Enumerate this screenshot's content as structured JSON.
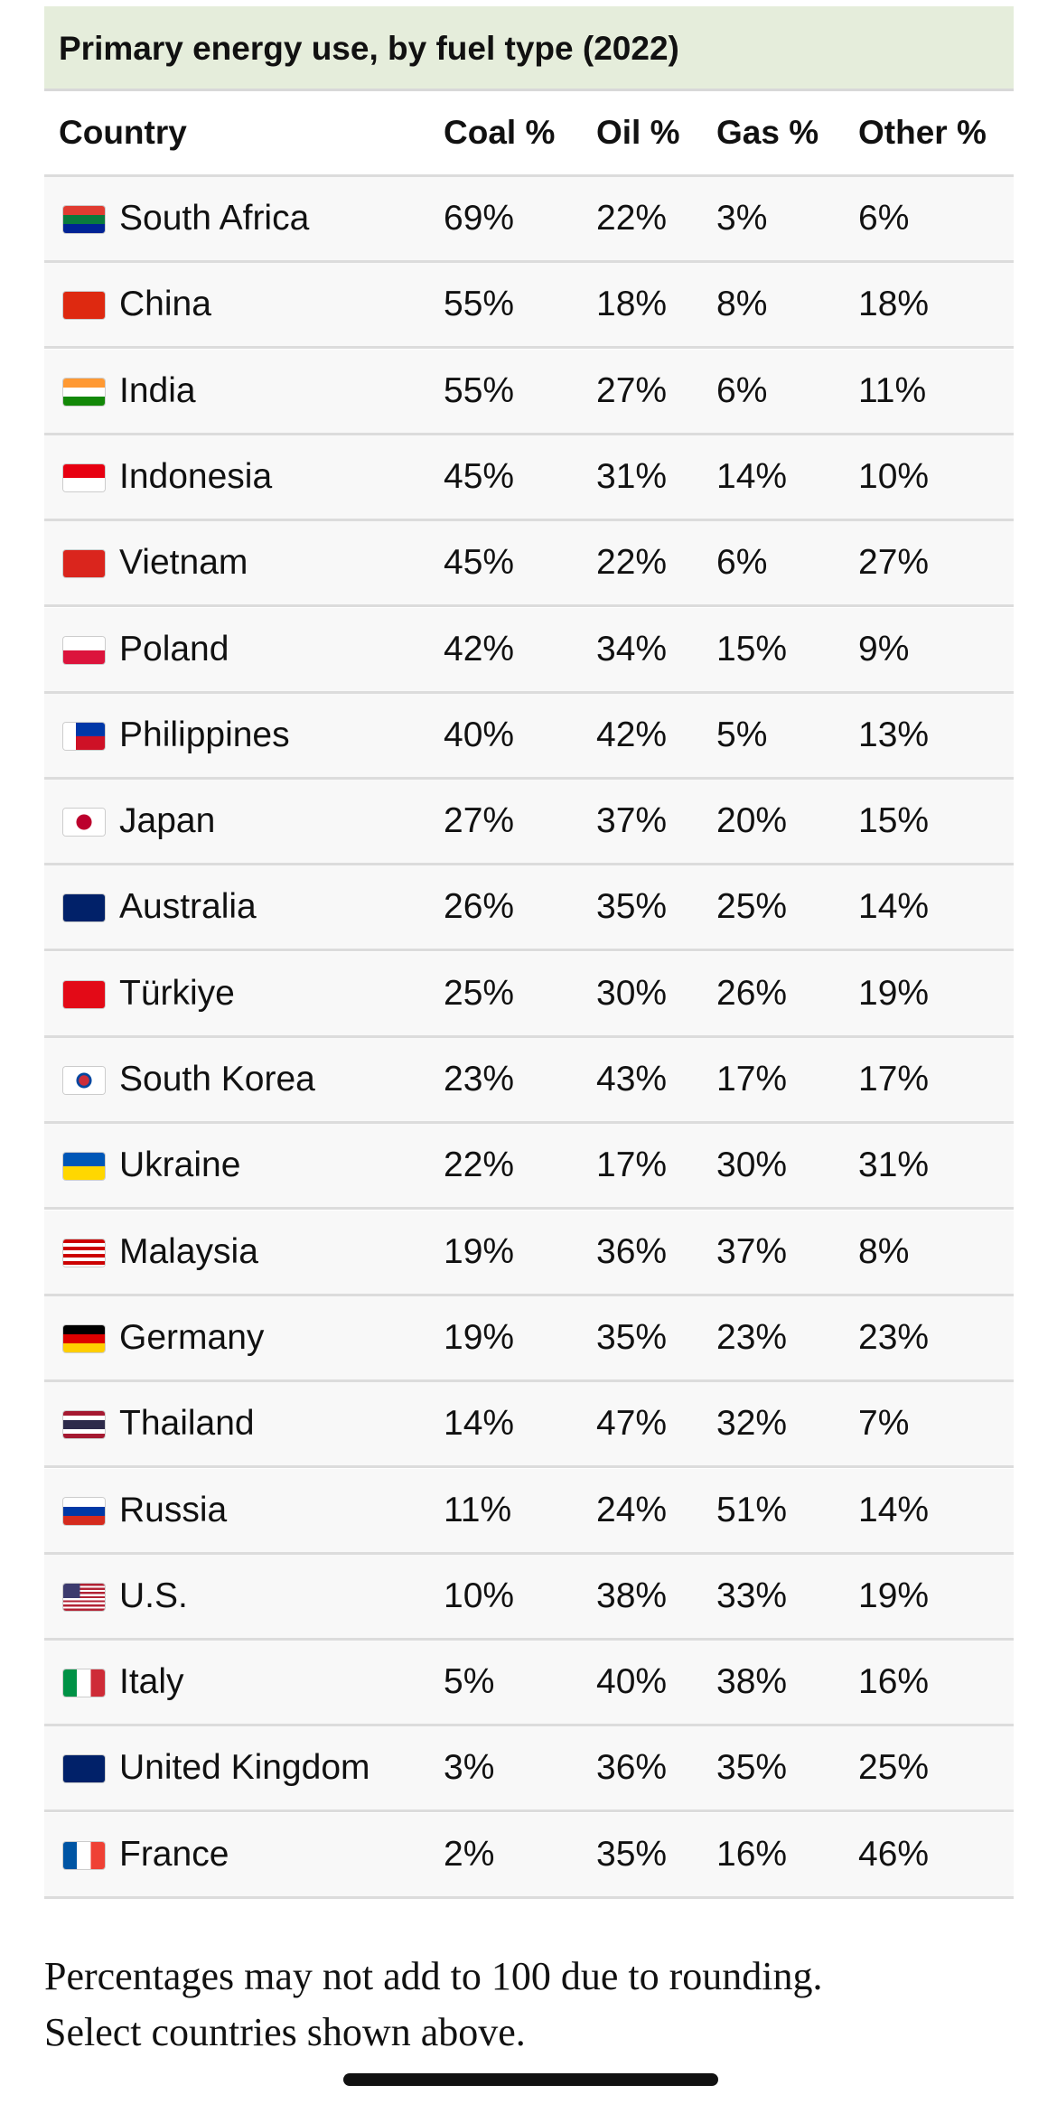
{
  "title": "Primary energy use, by fuel type (2022)",
  "table": {
    "columns": [
      "Country",
      "Coal %",
      "Oil %",
      "Gas %",
      "Other %"
    ],
    "rows": [
      [
        "South Africa",
        "69%",
        "22%",
        "3%",
        "6%"
      ],
      [
        "China",
        "55%",
        "18%",
        "8%",
        "18%"
      ],
      [
        "India",
        "55%",
        "27%",
        "6%",
        "11%"
      ],
      [
        "Indonesia",
        "45%",
        "31%",
        "14%",
        "10%"
      ],
      [
        "Vietnam",
        "45%",
        "22%",
        "6%",
        "27%"
      ],
      [
        "Poland",
        "42%",
        "34%",
        "15%",
        "9%"
      ],
      [
        "Philippines",
        "40%",
        "42%",
        "5%",
        "13%"
      ],
      [
        "Japan",
        "27%",
        "37%",
        "20%",
        "15%"
      ],
      [
        "Australia",
        "26%",
        "35%",
        "25%",
        "14%"
      ],
      [
        "Türkiye",
        "25%",
        "30%",
        "26%",
        "19%"
      ],
      [
        "South Korea",
        "23%",
        "43%",
        "17%",
        "17%"
      ],
      [
        "Ukraine",
        "22%",
        "17%",
        "30%",
        "31%"
      ],
      [
        "Malaysia",
        "19%",
        "36%",
        "37%",
        "8%"
      ],
      [
        "Germany",
        "19%",
        "35%",
        "23%",
        "23%"
      ],
      [
        "Thailand",
        "14%",
        "47%",
        "32%",
        "7%"
      ],
      [
        "Russia",
        "11%",
        "24%",
        "51%",
        "14%"
      ],
      [
        "U.S.",
        "10%",
        "38%",
        "33%",
        "19%"
      ],
      [
        "Italy",
        "5%",
        "40%",
        "38%",
        "16%"
      ],
      [
        "United Kingdom",
        "3%",
        "36%",
        "35%",
        "25%"
      ],
      [
        "France",
        "2%",
        "35%",
        "16%",
        "46%"
      ]
    ]
  },
  "footnote": [
    "Percentages may not add to 100 due to rounding.",
    "Select countries shown above."
  ]
}
